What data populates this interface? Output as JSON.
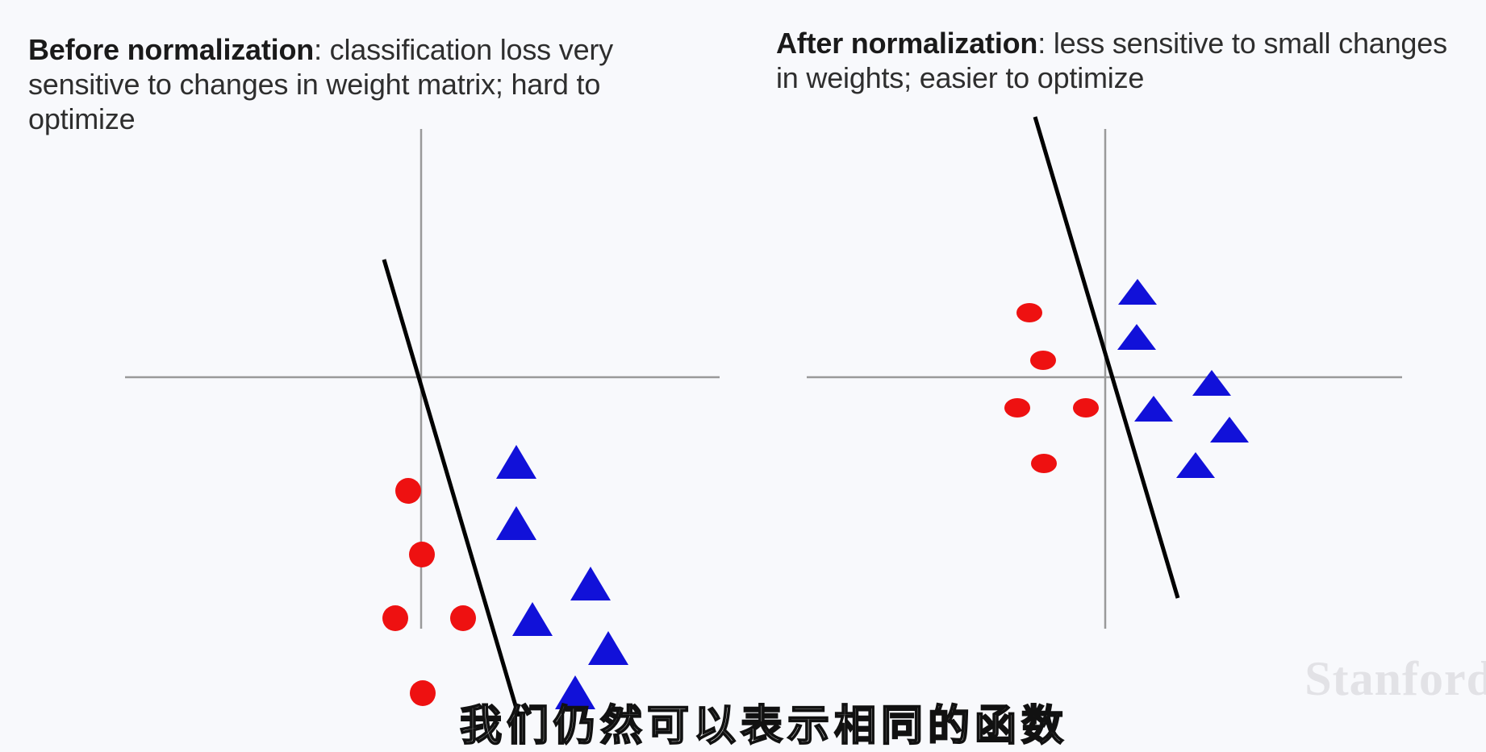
{
  "panels": {
    "left": {
      "title_bold": "Before normalization",
      "title_rest": ": classification loss very sensitive to changes in weight matrix; hard to optimize"
    },
    "right": {
      "title_bold": "After normalization",
      "title_rest": ": less sensitive to small changes in weights; easier to optimize"
    }
  },
  "watermark": "Stanford",
  "subtitle": "我们仍然可以表示相同的函数",
  "colors": {
    "axis": "#9a9a9a",
    "boundary": "#000000",
    "circle": "#ee1111",
    "triangle": "#1111d9"
  }
}
